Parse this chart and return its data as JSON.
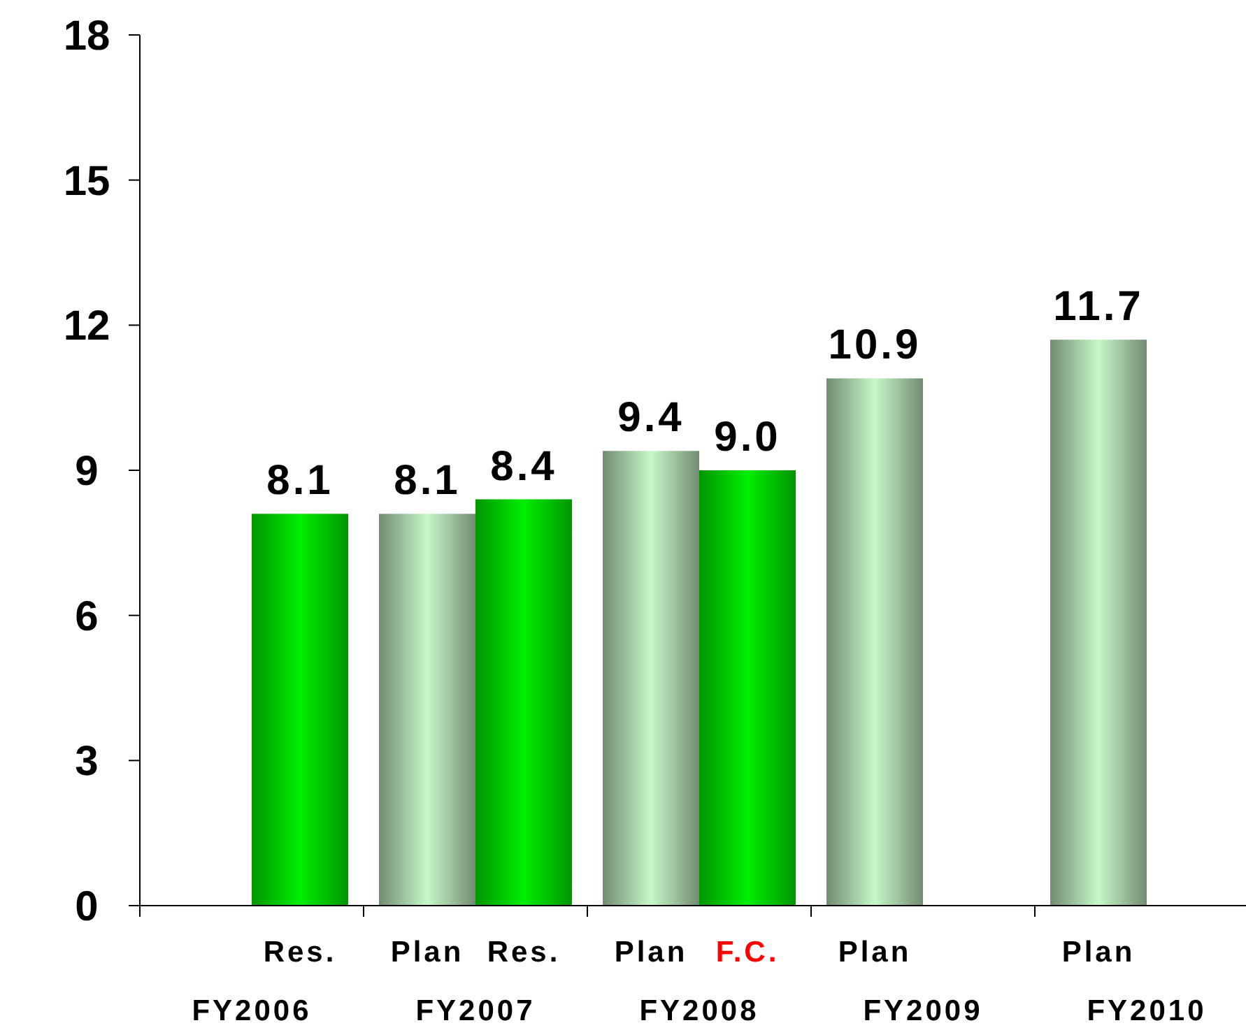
{
  "chart_data": {
    "type": "bar",
    "categories": [
      "FY2006",
      "FY2007",
      "FY2008",
      "FY2009",
      "FY2010"
    ],
    "series": [
      {
        "name": "Plan",
        "color": "#c8f8c8",
        "values": [
          null,
          8.1,
          9.4,
          10.9,
          11.7
        ],
        "value_labels": [
          null,
          "8.1",
          "9.4",
          "10.9",
          "11.7"
        ]
      },
      {
        "name": "Res.",
        "color": "#00ee00",
        "values": [
          8.1,
          8.4,
          9.0,
          null,
          null
        ],
        "value_labels": [
          "8.1",
          "8.4",
          "9.0",
          null,
          null
        ]
      }
    ],
    "annotations": [
      {
        "text": "F.C.",
        "x": "FY2008",
        "y": 0
      }
    ],
    "ylim": [
      0,
      18
    ],
    "yticks": [
      0,
      3,
      6,
      9,
      12,
      15,
      18
    ],
    "grid": false,
    "legend": "bottom"
  }
}
